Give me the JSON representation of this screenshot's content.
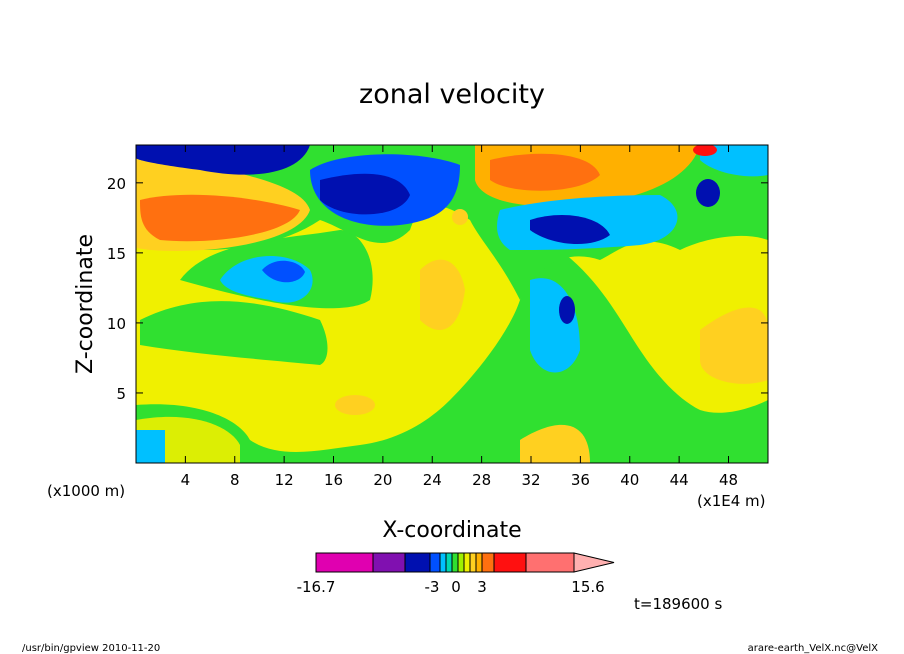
{
  "chart_data": {
    "type": "contour",
    "title": "zonal velocity",
    "x_label": "X-coordinate",
    "y_label": "Z-coordinate",
    "x_unit": "(x1000 m)",
    "x_unit_right": "(x1E4 m)",
    "xlim": [
      0,
      51.2
    ],
    "xticks": [
      4,
      8,
      12,
      16,
      20,
      24,
      28,
      32,
      36,
      40,
      44,
      48
    ],
    "ylim": [
      0,
      22.7
    ],
    "yticks": [
      5,
      10,
      15,
      20
    ],
    "colorbar": {
      "colors": [
        "#e000b0",
        "#8010b0",
        "#0010b0",
        "#0050ff",
        "#00c0ff",
        "#00d8b0",
        "#30e030",
        "#a0f000",
        "#f0f000",
        "#ffd020",
        "#ffb000",
        "#ff7010",
        "#ff1010",
        "#ff7070",
        "#ffb0b0"
      ],
      "labels": [
        -16.7,
        -3,
        0,
        3,
        15.6
      ]
    },
    "time_label": "t=189600 s",
    "footer_left": "/usr/bin/gpview  2010-11-20",
    "footer_right": "arare-earth_VelX.nc@VelX"
  }
}
